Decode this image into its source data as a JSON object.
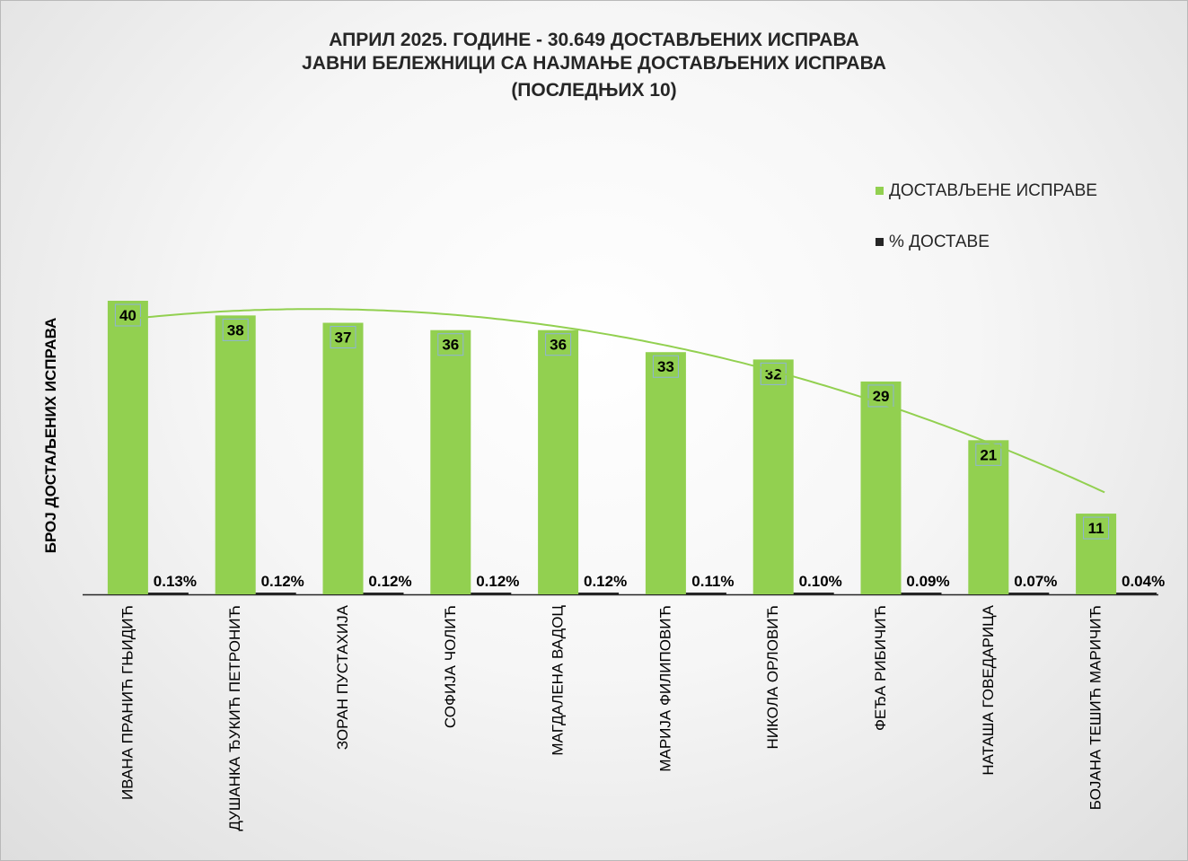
{
  "chart_data": {
    "type": "bar",
    "title_lines": [
      "АПРИЛ 2025. ГОДИНЕ - 30.649 ДОСТАВЉЕНИХ ИСПРАВА",
      "ЈАВНИ БЕЛЕЖНИЦИ СА НАЈМАЊЕ ДОСТАВЉЕНИХ ИСПРАВА",
      "(ПОСЛЕДЊИХ 10)"
    ],
    "ylabel": "БРОЈ ДОСТАЉЕНИХ ИСПРАВА",
    "xlabel": "",
    "categories": [
      "ИВАНА ПРАНИЋ ГЊИДИЋ",
      "ДУШАНКА ЂУКИЋ ПЕТРОНИЋ",
      "ЗОРАН ПУСТАХИЈА",
      "СОФИЈА ЧОЛИЋ",
      "МАГДАЛЕНА ВАДОЦ",
      "МАРИЈА ФИЛИПОВИЋ",
      "НИКОЛА ОРЛОВИЋ",
      "ФЕЂА РИБИЧИЋ",
      "НАТАША ГОВЕДАРИЦА",
      "БОЈАНА ТЕШИЋ МАРИЧИЋ"
    ],
    "series": [
      {
        "name": "ДОСТАВЉЕНЕ ИСПРАВЕ",
        "color": "#92d050",
        "values": [
          40,
          38,
          37,
          36,
          36,
          33,
          32,
          29,
          21,
          11
        ],
        "labels": [
          "40",
          "38",
          "37",
          "36",
          "36",
          "33",
          "32",
          "29",
          "21",
          "11"
        ]
      },
      {
        "name": "% ДОСТАВЕ",
        "color": "#262626",
        "values": [
          0.13,
          0.12,
          0.12,
          0.12,
          0.12,
          0.11,
          0.1,
          0.09,
          0.07,
          0.04
        ],
        "labels": [
          "0.13%",
          "0.12%",
          "0.12%",
          "0.12%",
          "0.12%",
          "0.11%",
          "0.10%",
          "0.09%",
          "0.07%",
          "0.04%"
        ]
      }
    ],
    "trendline": {
      "type": "polynomial",
      "series": "ДОСТАВЉЕНЕ ИСПРАВЕ",
      "color": "#92d050"
    },
    "ylim": [
      0,
      48.5
    ],
    "grid": false,
    "legend_position": "top-right"
  }
}
